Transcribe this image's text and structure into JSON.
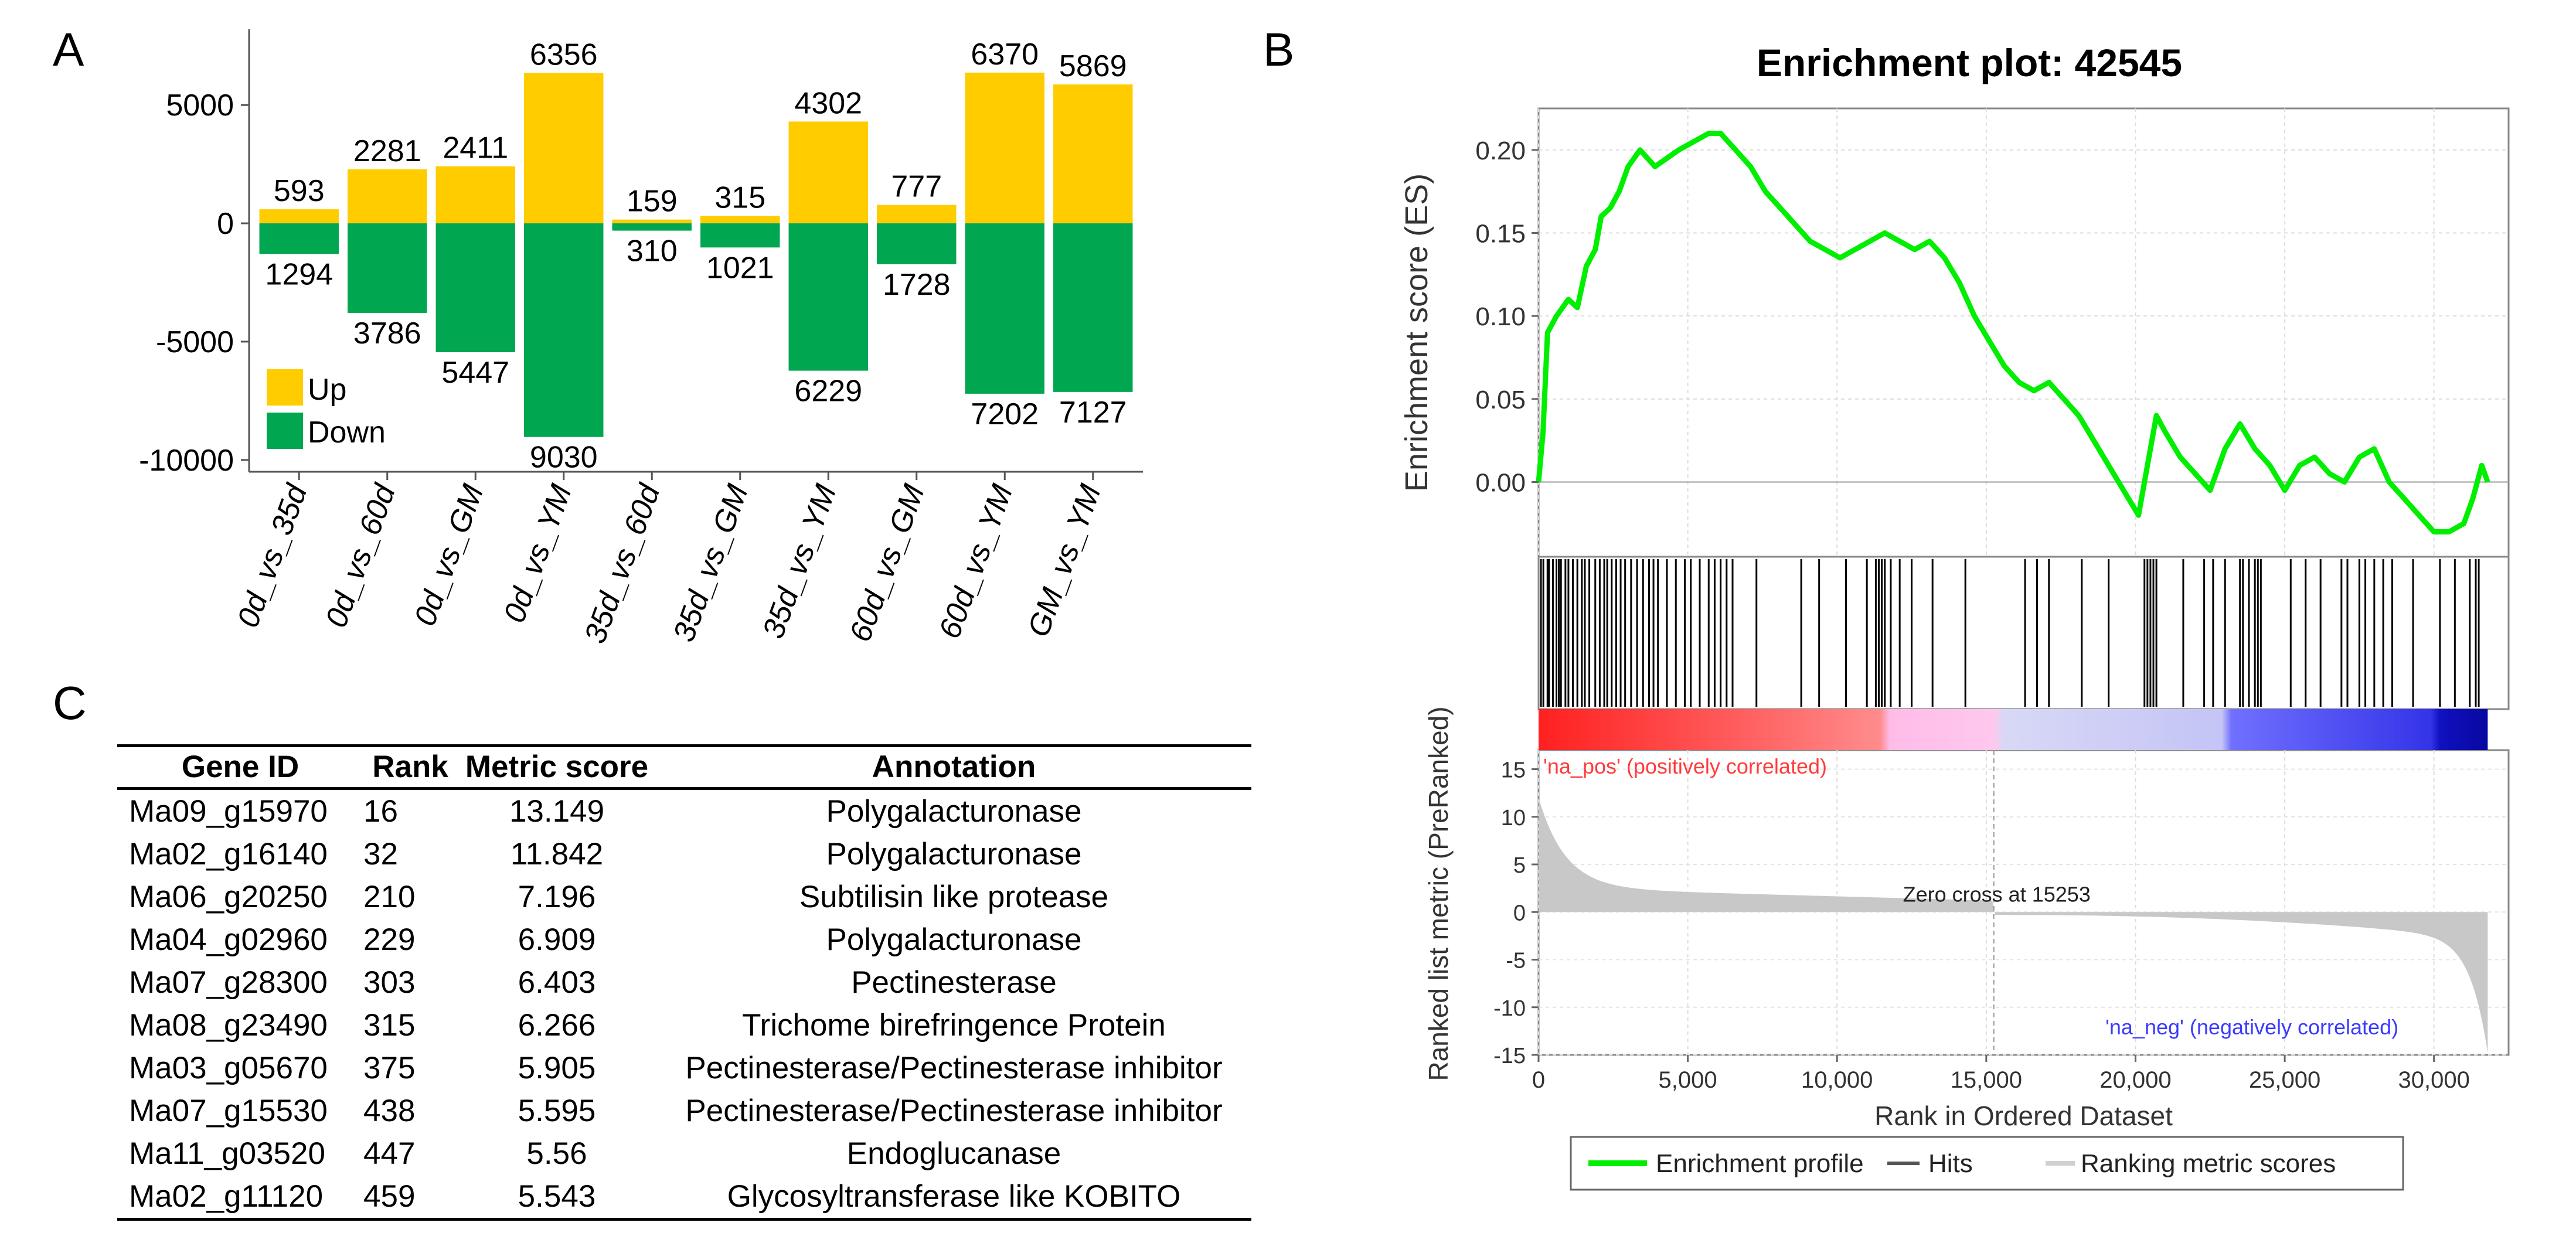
{
  "panels": {
    "a": "A",
    "b": "B",
    "c": "C"
  },
  "chart_data": [
    {
      "type": "bar",
      "panel": "A",
      "categories": [
        "0d_vs_35d",
        "0d_vs_60d",
        "0d_vs_GM",
        "0d_vs_YM",
        "35d_vs_60d",
        "35d_vs_GM",
        "35d_vs_YM",
        "60d_vs_GM",
        "60d_vs_YM",
        "GM_vs_YM"
      ],
      "series": [
        {
          "name": "Up",
          "values": [
            593,
            2281,
            2411,
            6356,
            159,
            315,
            4302,
            777,
            6370,
            5869
          ],
          "color": "#ffcc00"
        },
        {
          "name": "Down",
          "values": [
            -1294,
            -3786,
            -5447,
            -9030,
            -310,
            -1021,
            -6229,
            -1728,
            -7202,
            -7127
          ],
          "color": "#00a650"
        }
      ],
      "labels_up": [
        "593",
        "2281",
        "2411",
        "6356",
        "159",
        "315",
        "4302",
        "777",
        "6370",
        "5869"
      ],
      "labels_down": [
        "1294",
        "3786",
        "5447",
        "9030",
        "310",
        "1021",
        "6229",
        "1728",
        "7202",
        "7127"
      ],
      "ylim": [
        -10500,
        8200
      ],
      "yticks": [
        5000,
        0,
        -5000,
        -10000
      ],
      "ytick_labels": [
        "5000",
        "0",
        "-5000",
        "-10000"
      ],
      "legend": {
        "position": "bottom-left",
        "entries": [
          "Up",
          "Down"
        ]
      }
    },
    {
      "type": "line",
      "panel": "B",
      "title": "Enrichment plot: 42545",
      "ylabel_top": "Enrichment score (ES)",
      "ylabel_bottom": "Ranked list metric (PreRanked)",
      "xlabel": "Rank in Ordered Dataset",
      "xlim": [
        0,
        32500
      ],
      "es_ylim": [
        -0.045,
        0.225
      ],
      "metric_ylim": [
        -15,
        17
      ],
      "x_tick_values": [
        0,
        5000,
        10000,
        15000,
        20000,
        25000,
        30000
      ],
      "x_tick_labels": [
        "0",
        "5,000",
        "10,000",
        "15,000",
        "20,000",
        "25,000",
        "30,000"
      ],
      "es_tick_values": [
        0.2,
        0.15,
        0.1,
        0.05,
        0.0
      ],
      "es_tick_labels": [
        "0.20",
        "0.15",
        "0.10",
        "0.05",
        "0.00"
      ],
      "metric_tick_values": [
        15,
        10,
        5,
        0,
        -5,
        -10,
        -15
      ],
      "metric_tick_labels": [
        "15",
        "10",
        "5",
        "0",
        "-5",
        "-10",
        "-15"
      ],
      "es_profile": {
        "x": [
          0,
          150,
          300,
          600,
          1000,
          1300,
          1600,
          1900,
          2100,
          2400,
          2700,
          3000,
          3400,
          3900,
          4300,
          4700,
          5200,
          5700,
          6100,
          6600,
          7100,
          7600,
          8100,
          8600,
          9100,
          9600,
          10100,
          10600,
          11100,
          11600,
          12100,
          12600,
          13100,
          13600,
          14100,
          14600,
          15100,
          15600,
          16100,
          16600,
          17100,
          17600,
          18100,
          18600,
          19100,
          19600,
          20100,
          20400,
          20700,
          21000,
          21500,
          22000,
          22500,
          23000,
          23500,
          24000,
          24500,
          25000,
          25500,
          26000,
          26500,
          27000,
          27500,
          28000,
          28500,
          29000,
          29500,
          30000,
          30500,
          31000,
          31300,
          31600,
          31800
        ],
        "y": [
          0.0,
          0.03,
          0.09,
          0.1,
          0.11,
          0.105,
          0.13,
          0.14,
          0.16,
          0.165,
          0.175,
          0.19,
          0.2,
          0.19,
          0.195,
          0.2,
          0.205,
          0.21,
          0.21,
          0.2,
          0.19,
          0.175,
          0.165,
          0.155,
          0.145,
          0.14,
          0.135,
          0.14,
          0.145,
          0.15,
          0.145,
          0.14,
          0.145,
          0.135,
          0.12,
          0.1,
          0.085,
          0.07,
          0.06,
          0.055,
          0.06,
          0.05,
          0.04,
          0.025,
          0.01,
          -0.005,
          -0.02,
          0.01,
          0.04,
          0.03,
          0.015,
          0.005,
          -0.005,
          0.02,
          0.035,
          0.02,
          0.01,
          -0.005,
          0.01,
          0.015,
          0.005,
          0.0,
          0.015,
          0.02,
          0.0,
          -0.01,
          -0.02,
          -0.03,
          -0.03,
          -0.025,
          -0.01,
          0.01,
          0.0
        ]
      },
      "hits": [
        80,
        160,
        300,
        350,
        480,
        600,
        680,
        750,
        900,
        1000,
        1150,
        1300,
        1450,
        1550,
        1700,
        1900,
        2050,
        2200,
        2300,
        2450,
        2600,
        2750,
        2900,
        3100,
        3300,
        3500,
        3700,
        3850,
        4000,
        4300,
        4600,
        4900,
        5100,
        5400,
        5700,
        5900,
        6100,
        6300,
        6500,
        7300,
        8800,
        9400,
        10300,
        11000,
        11300,
        11400,
        11500,
        11600,
        11800,
        12100,
        12500,
        13200,
        14300,
        16300,
        16700,
        17100,
        18200,
        19100,
        20300,
        20400,
        20500,
        20600,
        20700,
        21600,
        22300,
        22600,
        23000,
        23500,
        23600,
        23800,
        24000,
        24100,
        24200,
        25200,
        25700,
        26200,
        26900,
        27100,
        27500,
        27700,
        28000,
        28300,
        28600,
        29300,
        30200,
        30700,
        31200,
        31400,
        31500
      ],
      "zero_cross_label": "Zero cross at 15253",
      "zero_cross_x": 15253,
      "na_pos_label": "'na_pos' (positively correlated)",
      "na_neg_label": "'na_neg' (negatively correlated)",
      "legend": {
        "position": "bottom",
        "entries": [
          "Enrichment profile",
          "Hits",
          "Ranking metric scores"
        ]
      },
      "colors": {
        "profile": "#00ee00",
        "pos": "#ff3b3b",
        "neg": "#3a3aff",
        "metric": "#c8c8c8"
      }
    }
  ],
  "table": {
    "headers": [
      "Gene ID",
      "Rank",
      "Metric score",
      "Annotation"
    ],
    "rows": [
      [
        "Ma09_g15970",
        "16",
        "13.149",
        "Polygalacturonase"
      ],
      [
        "Ma02_g16140",
        "32",
        "11.842",
        "Polygalacturonase"
      ],
      [
        "Ma06_g20250",
        "210",
        "7.196",
        "Subtilisin like protease"
      ],
      [
        "Ma04_g02960",
        "229",
        "6.909",
        "Polygalacturonase"
      ],
      [
        "Ma07_g28300",
        "303",
        "6.403",
        "Pectinesterase"
      ],
      [
        "Ma08_g23490",
        "315",
        "6.266",
        "Trichome birefringence Protein"
      ],
      [
        "Ma03_g05670",
        "375",
        "5.905",
        "Pectinesterase/Pectinesterase inhibitor"
      ],
      [
        "Ma07_g15530",
        "438",
        "5.595",
        "Pectinesterase/Pectinesterase inhibitor"
      ],
      [
        "Ma11_g03520",
        "447",
        "5.56",
        "Endoglucanase"
      ],
      [
        "Ma02_g11120",
        "459",
        "5.543",
        "Glycosyltransferase like KOBITO"
      ]
    ]
  }
}
